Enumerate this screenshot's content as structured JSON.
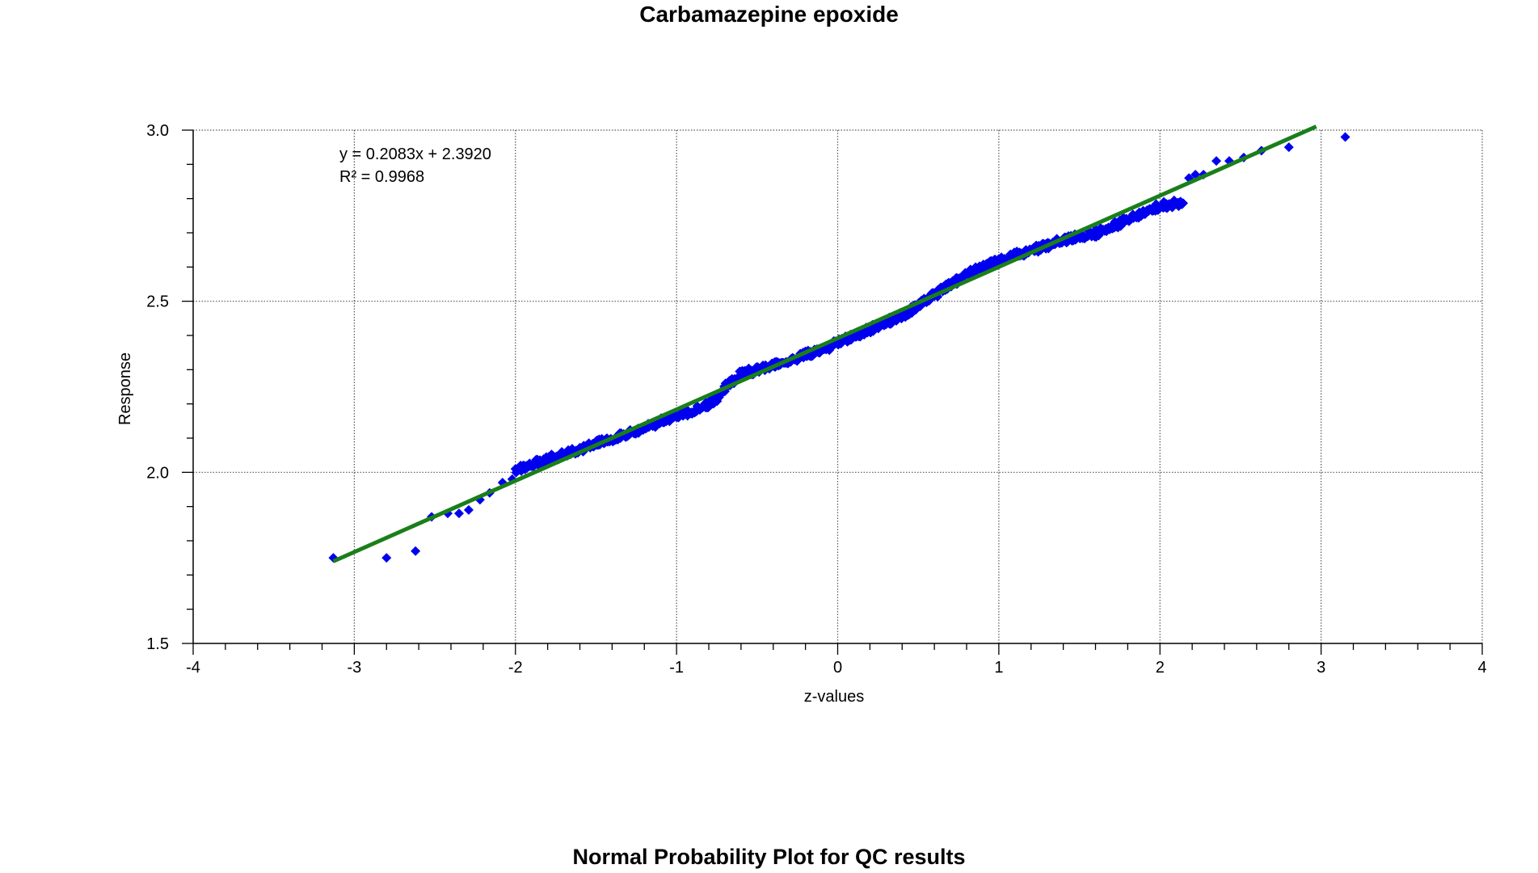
{
  "chart_data": {
    "type": "scatter",
    "title": "Carbamazepine epoxide",
    "caption": "Normal Probability Plot for QC results",
    "xlabel": "z-values",
    "ylabel": "Response",
    "xlim": [
      -4,
      4
    ],
    "ylim": [
      1.5,
      3.0
    ],
    "x_ticks": [
      "-4",
      "-3",
      "-2",
      "-1",
      "0",
      "1",
      "2",
      "3",
      "4"
    ],
    "y_ticks": [
      "1.5",
      "2.0",
      "2.5",
      "3.0"
    ],
    "x_minor_step": 0.2,
    "y_minor_step": 0.1,
    "grid": true,
    "trendline": {
      "equation": "y = 0.2083x + 2.3920",
      "r_squared": "R² = 0.9968",
      "slope": 0.2083,
      "intercept": 2.392,
      "x_range": [
        -3.13,
        2.97
      ],
      "color": "#1a7f1a"
    },
    "marker_color": "#0000ee",
    "outliers": {
      "x": [
        -3.13,
        -2.8,
        -2.62,
        -2.52,
        -2.42,
        -2.35,
        -2.29,
        -2.22,
        -2.16,
        -2.08,
        -2.02,
        2.18,
        2.22,
        2.27,
        2.35,
        2.43,
        2.52,
        2.63,
        2.8,
        3.15
      ],
      "y": [
        1.75,
        1.75,
        1.77,
        1.87,
        1.88,
        1.88,
        1.89,
        1.92,
        1.94,
        1.97,
        1.98,
        2.86,
        2.87,
        2.87,
        2.91,
        2.91,
        2.92,
        2.94,
        2.95,
        2.98
      ]
    },
    "dense_profile": {
      "x": [
        -2.0,
        -1.8,
        -1.6,
        -1.4,
        -1.2,
        -1.0,
        -0.9,
        -0.8,
        -0.75,
        -0.7,
        -0.65,
        -0.6,
        -0.5,
        -0.3,
        -0.1,
        0.0,
        0.2,
        0.4,
        0.6,
        0.8,
        1.0,
        1.2,
        1.4,
        1.6,
        1.8,
        2.0,
        2.15
      ],
      "y": [
        2.01,
        2.04,
        2.07,
        2.1,
        2.13,
        2.17,
        2.18,
        2.2,
        2.22,
        2.25,
        2.27,
        2.29,
        2.3,
        2.33,
        2.36,
        2.38,
        2.42,
        2.46,
        2.52,
        2.58,
        2.62,
        2.65,
        2.68,
        2.7,
        2.74,
        2.78,
        2.79
      ]
    }
  }
}
